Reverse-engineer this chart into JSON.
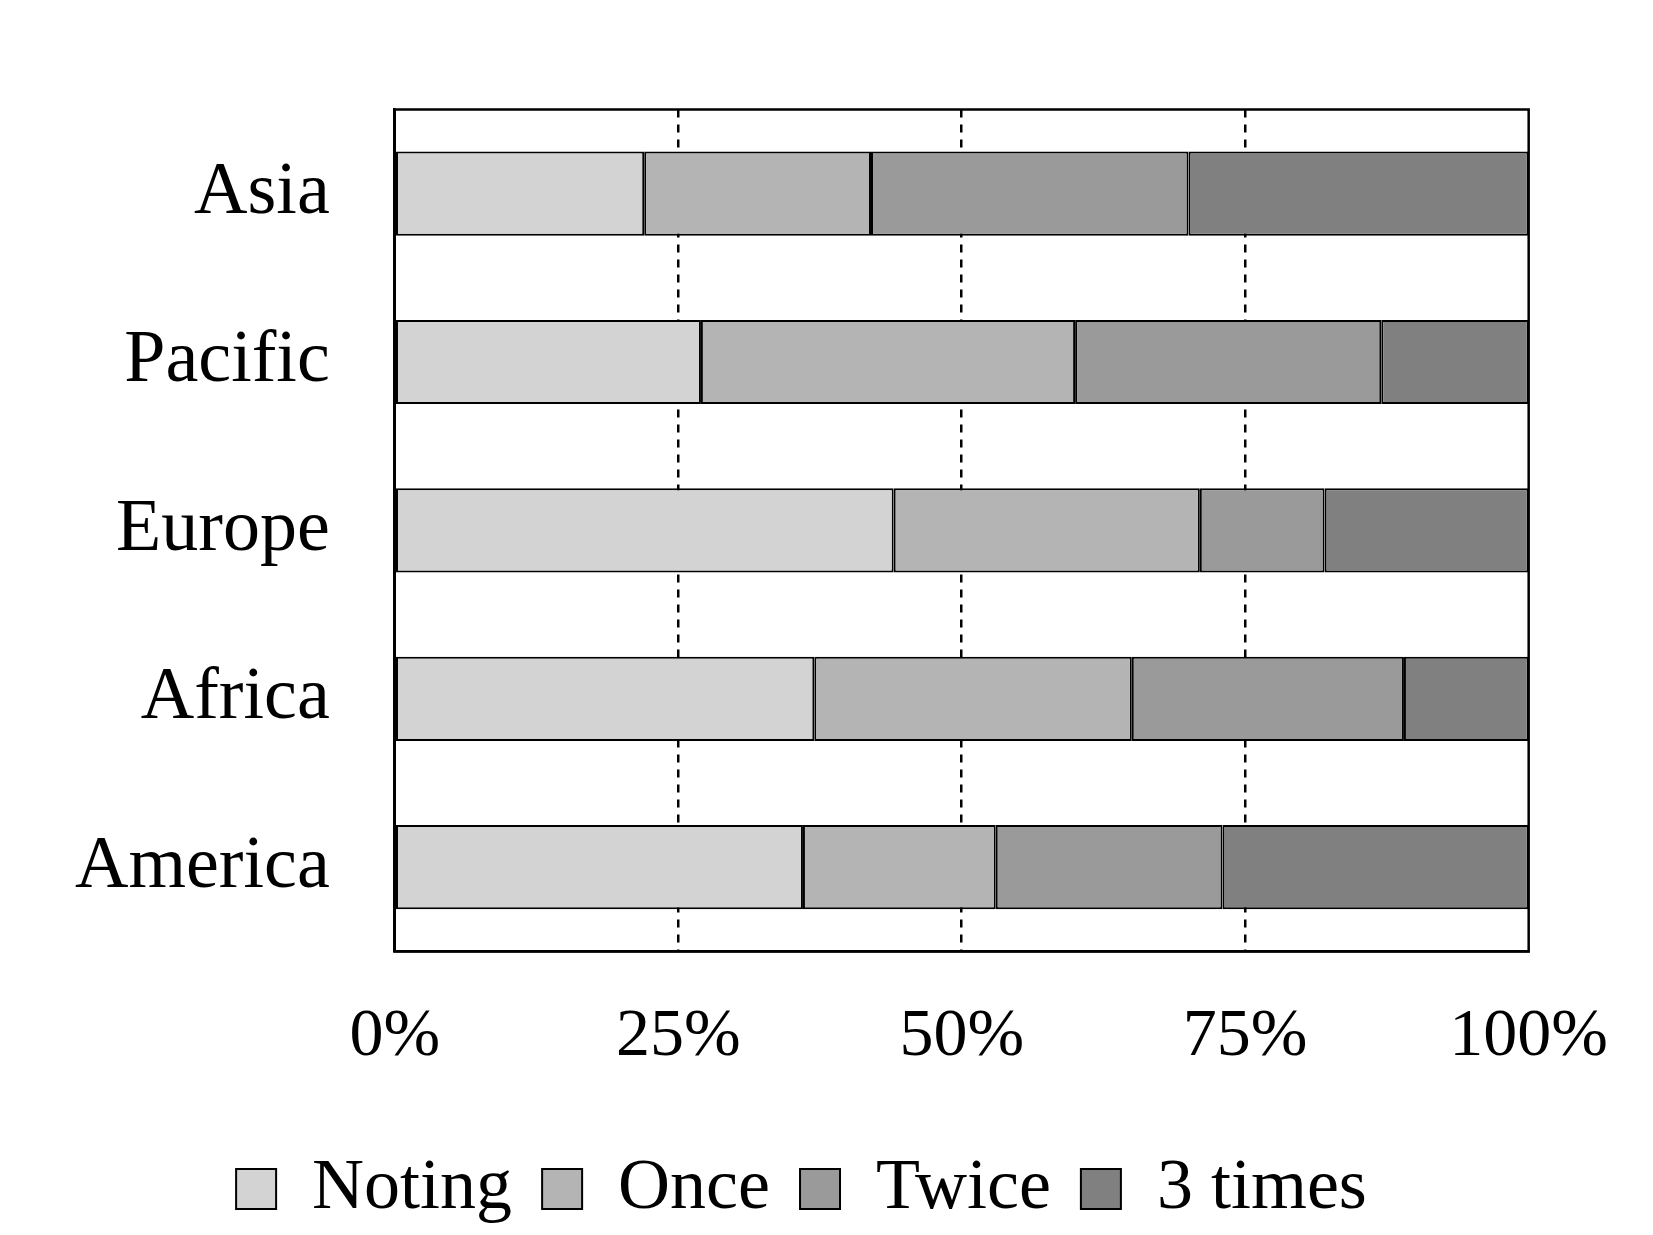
{
  "chart_data": {
    "type": "bar",
    "orientation": "horizontal",
    "stacked": true,
    "categories": [
      "Asia",
      "Pacific",
      "Europe",
      "Africa",
      "America"
    ],
    "series": [
      {
        "name": "Noting",
        "color": "#d3d3d3",
        "values": [
          22,
          27,
          44,
          37,
          36
        ]
      },
      {
        "name": "Once",
        "color": "#b4b4b4",
        "values": [
          20,
          33,
          27,
          28,
          17
        ]
      },
      {
        "name": "Twice",
        "color": "#9a9a9a",
        "values": [
          28,
          27,
          11,
          24,
          20
        ]
      },
      {
        "name": "3 times",
        "color": "#808080",
        "values": [
          30,
          13,
          18,
          11,
          27
        ]
      }
    ],
    "xlim": [
      0,
      100
    ],
    "xticks": [
      {
        "value": 0,
        "label": "0%"
      },
      {
        "value": 25,
        "label": "25%"
      },
      {
        "value": 50,
        "label": "50%"
      },
      {
        "value": 75,
        "label": "75%"
      },
      {
        "value": 100,
        "label": "100%"
      }
    ],
    "grid": "x",
    "line_style": "dashed",
    "legend": "bottom"
  }
}
